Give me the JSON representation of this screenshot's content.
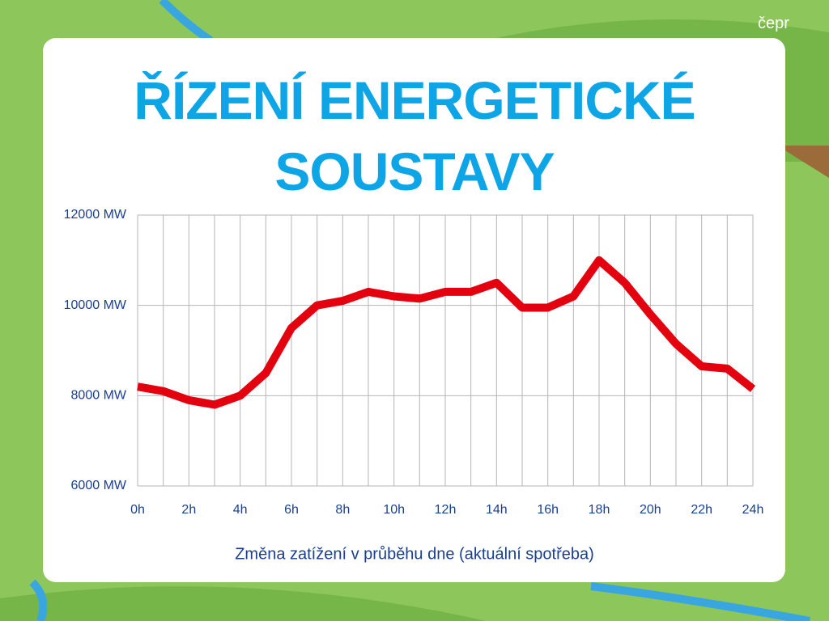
{
  "logo_text": "čepr",
  "chart_data": {
    "type": "line",
    "title": "ŘÍZENÍ ENERGETICKÉ SOUSTAVY",
    "x_label": "Změna zatížení v průběhu dne (aktuální spotřeba)",
    "x": [
      0,
      1,
      2,
      3,
      4,
      5,
      6,
      7,
      8,
      9,
      10,
      11,
      12,
      13,
      14,
      15,
      16,
      17,
      18,
      19,
      20,
      21,
      22,
      23,
      24
    ],
    "values": [
      8200,
      8100,
      7900,
      7800,
      8000,
      8500,
      9500,
      10000,
      10100,
      10300,
      10200,
      10150,
      10300,
      10300,
      10500,
      9950,
      9950,
      10200,
      11000,
      10500,
      9800,
      9150,
      8650,
      8600,
      8150
    ],
    "color": "#e3000f",
    "xlim": [
      0,
      24
    ],
    "xticks": [
      {
        "value": 0,
        "label": "0h"
      },
      {
        "value": 2,
        "label": "2h"
      },
      {
        "value": 4,
        "label": "4h"
      },
      {
        "value": 6,
        "label": "6h"
      },
      {
        "value": 8,
        "label": "8h"
      },
      {
        "value": 10,
        "label": "10h"
      },
      {
        "value": 12,
        "label": "12h"
      },
      {
        "value": 14,
        "label": "14h"
      },
      {
        "value": 16,
        "label": "16h"
      },
      {
        "value": 18,
        "label": "18h"
      },
      {
        "value": 20,
        "label": "20h"
      },
      {
        "value": 22,
        "label": "22h"
      },
      {
        "value": 24,
        "label": "24h"
      }
    ],
    "x_minor_ticks": [
      1,
      3,
      5,
      7,
      9,
      11,
      13,
      15,
      17,
      19,
      21,
      23
    ],
    "ylim": [
      6000,
      12000
    ],
    "yticks": [
      {
        "value": 6000,
        "label": "6000 MW"
      },
      {
        "value": 8000,
        "label": "8000 MW"
      },
      {
        "value": 10000,
        "label": "10000 MW"
      },
      {
        "value": 12000,
        "label": "12000 MW"
      }
    ],
    "grid": true
  }
}
